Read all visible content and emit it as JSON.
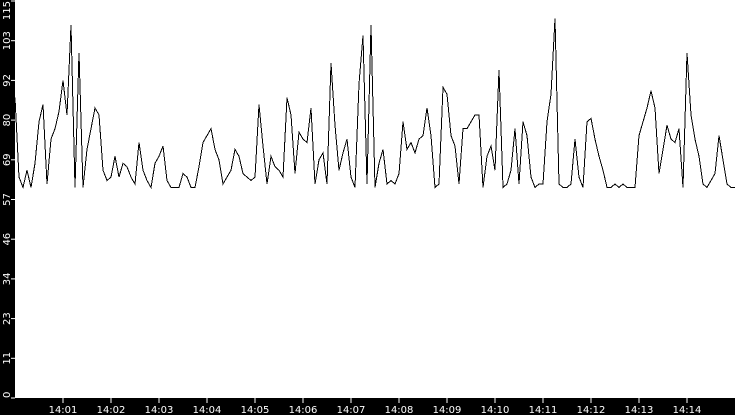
{
  "chart_data": {
    "type": "line",
    "title": "",
    "xlabel": "",
    "ylabel": "",
    "ylim": [
      0,
      115
    ],
    "xlim": [
      "14:00:00",
      "14:15:00"
    ],
    "grid": false,
    "y_ticks": [
      0,
      11,
      23,
      34,
      46,
      57,
      69,
      80,
      92,
      103,
      115
    ],
    "x_ticks": [
      "14:01",
      "14:02",
      "14:03",
      "14:04",
      "14:05",
      "14:06",
      "14:07",
      "14:08",
      "14:09",
      "14:10",
      "14:11",
      "14:12",
      "14:13",
      "14:14"
    ],
    "colors": {
      "background": "#000000",
      "plot": "#ffffff",
      "line": "#000000",
      "axis_text": "#ffffff"
    },
    "series": [
      {
        "x": [
          "14:00:00",
          "14:00:05",
          "14:00:10",
          "14:00:15",
          "14:00:20",
          "14:00:25",
          "14:00:30",
          "14:00:35",
          "14:00:40",
          "14:00:45",
          "14:00:50",
          "14:00:55",
          "14:01:00",
          "14:01:05",
          "14:01:10",
          "14:01:15",
          "14:01:20",
          "14:01:25",
          "14:01:30",
          "14:01:35",
          "14:01:40",
          "14:01:45",
          "14:01:50",
          "14:01:55",
          "14:02:00",
          "14:02:05",
          "14:02:10",
          "14:02:15",
          "14:02:20",
          "14:02:25",
          "14:02:30",
          "14:02:35",
          "14:02:40",
          "14:02:45",
          "14:02:50",
          "14:02:55",
          "14:03:00",
          "14:03:05",
          "14:03:10",
          "14:03:15",
          "14:03:20",
          "14:03:25",
          "14:03:30",
          "14:03:35",
          "14:03:40",
          "14:03:45",
          "14:03:50",
          "14:03:55",
          "14:04:00",
          "14:04:05",
          "14:04:10",
          "14:04:15",
          "14:04:20",
          "14:04:25",
          "14:04:30",
          "14:04:35",
          "14:04:40",
          "14:04:45",
          "14:04:50",
          "14:04:55",
          "14:05:00",
          "14:05:05",
          "14:05:10",
          "14:05:15",
          "14:05:20",
          "14:05:25",
          "14:05:30",
          "14:05:35",
          "14:05:40",
          "14:05:45",
          "14:05:50",
          "14:05:55",
          "14:06:00",
          "14:06:05",
          "14:06:10",
          "14:06:15",
          "14:06:20",
          "14:06:25",
          "14:06:30",
          "14:06:35",
          "14:06:40",
          "14:06:45",
          "14:06:50",
          "14:06:55",
          "14:07:00",
          "14:07:05",
          "14:07:10",
          "14:07:15",
          "14:07:20",
          "14:07:25",
          "14:07:30",
          "14:07:35",
          "14:07:40",
          "14:07:45",
          "14:07:50",
          "14:07:55",
          "14:08:00",
          "14:08:05",
          "14:08:10",
          "14:08:15",
          "14:08:20",
          "14:08:25",
          "14:08:30",
          "14:08:35",
          "14:08:40",
          "14:08:45",
          "14:08:50",
          "14:08:55",
          "14:09:00",
          "14:09:05",
          "14:09:10",
          "14:09:15",
          "14:09:20",
          "14:09:25",
          "14:09:30",
          "14:09:35",
          "14:09:40",
          "14:09:45",
          "14:09:50",
          "14:09:55",
          "14:10:00",
          "14:10:05",
          "14:10:10",
          "14:10:15",
          "14:10:20",
          "14:10:25",
          "14:10:30",
          "14:10:35",
          "14:10:40",
          "14:10:45",
          "14:10:50",
          "14:10:55",
          "14:11:00",
          "14:11:05",
          "14:11:10",
          "14:11:15",
          "14:11:20",
          "14:11:25",
          "14:11:30",
          "14:11:35",
          "14:11:40",
          "14:11:45",
          "14:11:50",
          "14:11:55",
          "14:12:00",
          "14:12:05",
          "14:12:10",
          "14:12:15",
          "14:12:20",
          "14:12:25",
          "14:12:30",
          "14:12:35",
          "14:12:40",
          "14:12:45",
          "14:12:50",
          "14:12:55",
          "14:13:00",
          "14:13:05",
          "14:13:10",
          "14:13:15",
          "14:13:20",
          "14:13:25",
          "14:13:30",
          "14:13:35",
          "14:13:40",
          "14:13:45",
          "14:13:50",
          "14:13:55",
          "14:14:00",
          "14:14:05",
          "14:14:10",
          "14:14:15",
          "14:14:20",
          "14:14:25",
          "14:14:30",
          "14:14:35",
          "14:14:40",
          "14:14:45",
          "14:14:50",
          "14:14:55",
          "14:15:00"
        ],
        "values": [
          87,
          64,
          61,
          66,
          61,
          68,
          80,
          85,
          62,
          75,
          78,
          83,
          92,
          82,
          108,
          61,
          100,
          61,
          72,
          78,
          84,
          82,
          66,
          63,
          64,
          70,
          64,
          68,
          67,
          64,
          62,
          74,
          66,
          63,
          61,
          68,
          70,
          73,
          63,
          61,
          61,
          61,
          65,
          64,
          61,
          61,
          67,
          74,
          76,
          78,
          72,
          69,
          62,
          64,
          66,
          72,
          70,
          65,
          64,
          63,
          64,
          85,
          73,
          62,
          70,
          67,
          66,
          64,
          87,
          82,
          65,
          77,
          75,
          74,
          84,
          62,
          69,
          71,
          62,
          97,
          79,
          66,
          71,
          75,
          64,
          61,
          91,
          105,
          62,
          108,
          61,
          68,
          72,
          62,
          63,
          62,
          65,
          80,
          72,
          74,
          71,
          75,
          76,
          84,
          76,
          61,
          62,
          90,
          88,
          76,
          73,
          62,
          78,
          78,
          80,
          82,
          82,
          61,
          70,
          73,
          66,
          95,
          61,
          62,
          66,
          78,
          62,
          80,
          76,
          64,
          61,
          62,
          62,
          80,
          88,
          110,
          62,
          61,
          61,
          62,
          75,
          64,
          61,
          80,
          81,
          75,
          70,
          66,
          61,
          61,
          62,
          61,
          62,
          61,
          61,
          61,
          76,
          80,
          84,
          89,
          84,
          65,
          72,
          79,
          75,
          74,
          78,
          61,
          100,
          82,
          75,
          70,
          62,
          61,
          63,
          65,
          76,
          69,
          62,
          61,
          61
        ]
      }
    ]
  }
}
